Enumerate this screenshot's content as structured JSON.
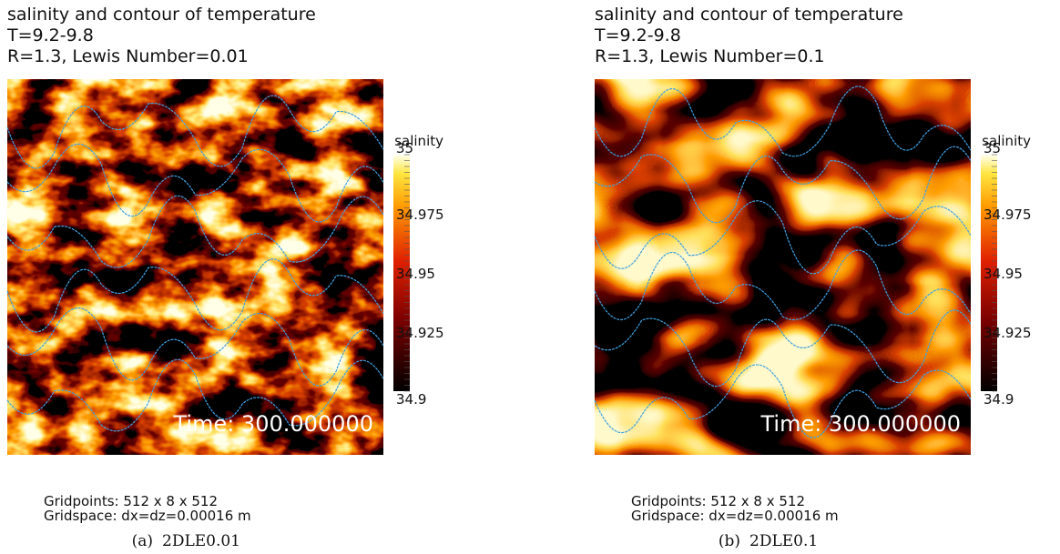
{
  "panels": [
    {
      "title_lines": [
        "salinity and contour of temperature",
        "T=9.2-9.8",
        "R=1.3, Lewis Number=0.01"
      ],
      "colorbar_label": "salinity",
      "colorbar_ticks": [
        "35",
        "34.975",
        "34.95",
        "34.925",
        "34.9"
      ],
      "time": "Time: 300.000000",
      "gridpoints": "Gridpoints: 512 x 8 x 512",
      "gridspace": "Gridspace: dx=dz=0.00016 m",
      "caption_tag": "(a)",
      "caption": "2DLE0.01"
    },
    {
      "title_lines": [
        "salinity and contour of temperature",
        "T=9.2-9.8",
        "R=1.3, Lewis Number=0.1"
      ],
      "colorbar_label": "salinity",
      "colorbar_ticks": [
        "35",
        "34.975",
        "34.95",
        "34.925",
        "34.9"
      ],
      "time": "Time: 300.000000",
      "gridpoints": "Gridpoints: 512 x 8 x 512",
      "gridspace": "Gridspace: dx=dz=0.00016 m",
      "caption_tag": "(b)",
      "caption": "2DLE0.1"
    }
  ]
}
